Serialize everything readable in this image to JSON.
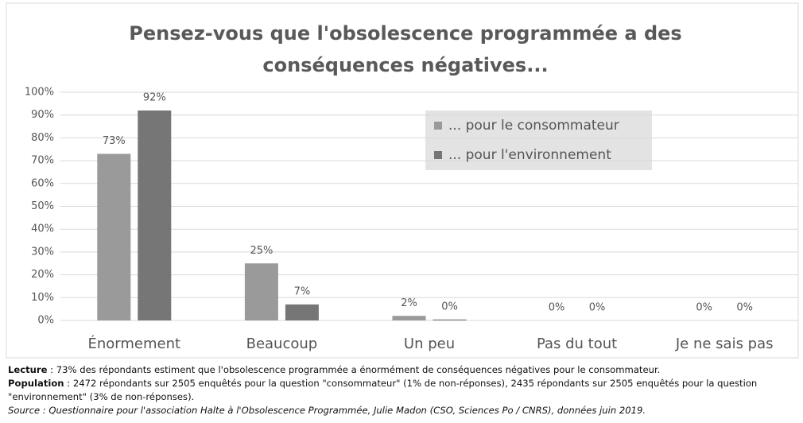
{
  "chart_data": {
    "type": "bar",
    "title": "Pensez-vous que l'obsolescence programmée a des conséquences négatives...",
    "categories": [
      "Énormement",
      "Beaucoup",
      "Un peu",
      "Pas du tout",
      "Je ne sais pas"
    ],
    "series": [
      {
        "name": "... pour le consommateur",
        "color": "#9a9a9a",
        "values": [
          73,
          25,
          2,
          0,
          0
        ],
        "value_labels": [
          "73%",
          "25%",
          "2%",
          "0%",
          "0%"
        ]
      },
      {
        "name": "... pour l'environnement",
        "color": "#767676",
        "values": [
          92,
          7,
          0.4,
          0,
          0
        ],
        "value_labels": [
          "92%",
          "7%",
          "0%",
          "0%",
          "0%"
        ]
      }
    ],
    "ylim": [
      0,
      100
    ],
    "yticks": [
      {
        "value": 0,
        "label": "0%"
      },
      {
        "value": 10,
        "label": "10%"
      },
      {
        "value": 20,
        "label": "20%"
      },
      {
        "value": 30,
        "label": "30%"
      },
      {
        "value": 40,
        "label": "40%"
      },
      {
        "value": 50,
        "label": "50%"
      },
      {
        "value": 60,
        "label": "60%"
      },
      {
        "value": 70,
        "label": "70%"
      },
      {
        "value": 80,
        "label": "80%"
      },
      {
        "value": 90,
        "label": "90%"
      },
      {
        "value": 100,
        "label": "100%"
      }
    ],
    "grid": true,
    "legend": "upper right"
  },
  "notes": {
    "lecture": {
      "label": "Lecture",
      "text": " : 73% des répondants estiment que l'obsolescence programmée a énormément de conséquences négatives pour le consommateur."
    },
    "population": {
      "label": "Population",
      "text": " : 2472 répondants sur 2505 enquêtés pour la question \"consommateur\" (1% de non-réponses), 2435 répondants sur 2505 enquêtés pour la question \"environnement\" (3% de non-réponses)."
    },
    "source": "Source : Questionnaire pour l'association Halte à l'Obsolescence Programmée, Julie Madon (CSO, Sciences Po / CNRS), données juin 2019."
  }
}
